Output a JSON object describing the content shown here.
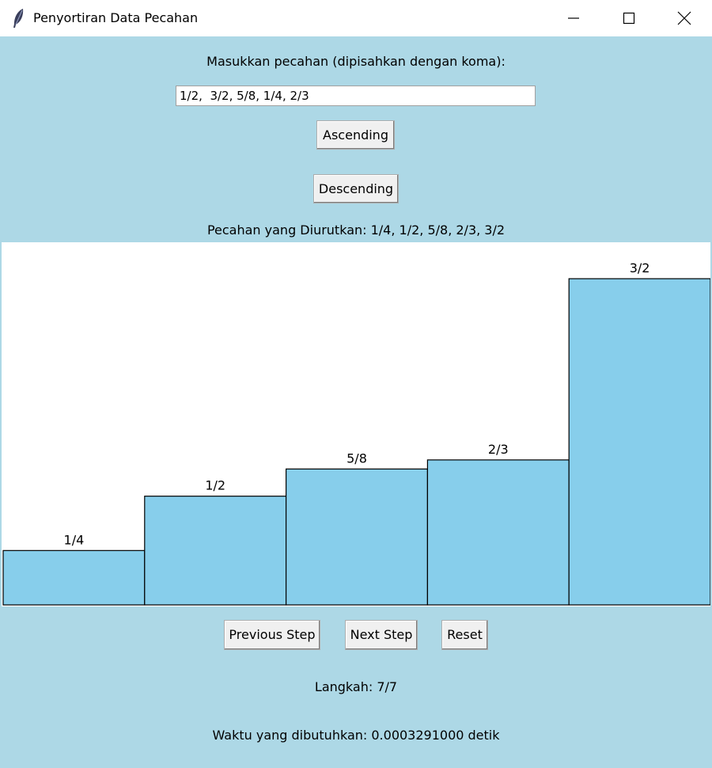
{
  "window": {
    "title": "Penyortiran Data Pecahan",
    "app_icon": "feather-icon",
    "controls": [
      "minimize-icon",
      "maximize-icon",
      "close-icon"
    ]
  },
  "input": {
    "prompt": "Masukkan pecahan (dipisahkan dengan koma):",
    "value": "1/2,  3/2, 5/8, 1/4, 2/3"
  },
  "buttons": {
    "ascending": "Ascending",
    "descending": "Descending",
    "previous": "Previous Step",
    "next": "Next Step",
    "reset": "Reset"
  },
  "sorted_text": "Pecahan yang Diurutkan:  1/4, 1/2,  5/8,  2/3,   3/2",
  "step_text": "Langkah: 7/7",
  "time_text": "Waktu yang dibutuhkan: 0.0003291000 detik",
  "colors": {
    "bar_fill": "#87ceeb",
    "background": "#add8e6"
  },
  "chart_data": {
    "type": "bar",
    "categories": [
      "1/4",
      "1/2",
      "5/8",
      "2/3",
      "3/2"
    ],
    "values": [
      0.25,
      0.5,
      0.625,
      0.6667,
      1.5
    ]
  }
}
